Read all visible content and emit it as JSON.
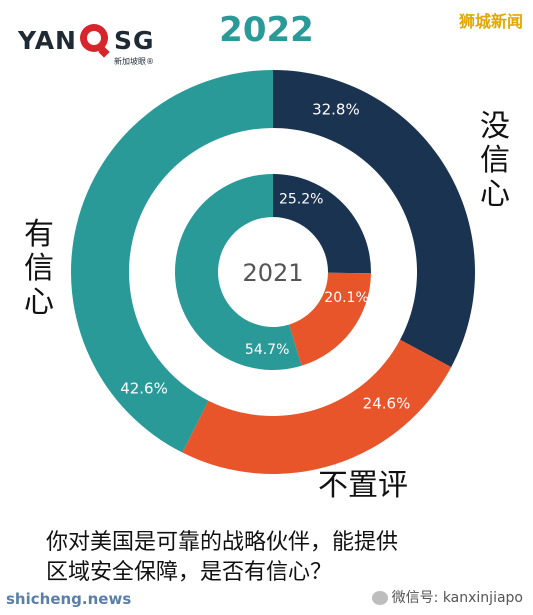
{
  "header": {
    "logo_left": "YAN",
    "logo_right": "SG",
    "logo_sub": "新加坡眼®",
    "year_outer": "2022",
    "source_top": "狮城新闻"
  },
  "question_lines": [
    "你对美国是可靠的战略伙伴，能提供",
    "区域安全保障，是否有信心？"
  ],
  "labels": {
    "no_confidence_chars": [
      "没",
      "信",
      "心"
    ],
    "confidence_chars": [
      "有",
      "信",
      "心"
    ],
    "no_comment": "不置评"
  },
  "footer": {
    "site": "shicheng.news",
    "wechat": "微信号: kanxinjiapo"
  },
  "colors": {
    "no_confidence": "#1a3350",
    "no_comment": "#e9552b",
    "confidence": "#2a9a98"
  },
  "chart_data": {
    "type": "pie",
    "rings": [
      {
        "name": "2022",
        "slices": [
          {
            "category": "没信心",
            "value": 32.8,
            "label": "32.8%"
          },
          {
            "category": "不置评",
            "value": 24.6,
            "label": "24.6%"
          },
          {
            "category": "有信心",
            "value": 42.6,
            "label": "42.6%"
          }
        ]
      },
      {
        "name": "2021",
        "slices": [
          {
            "category": "没信心",
            "value": 25.2,
            "label": "25.2%"
          },
          {
            "category": "不置评",
            "value": 20.1,
            "label": "20.1%"
          },
          {
            "category": "有信心",
            "value": 54.7,
            "label": "54.7%"
          }
        ]
      }
    ]
  }
}
